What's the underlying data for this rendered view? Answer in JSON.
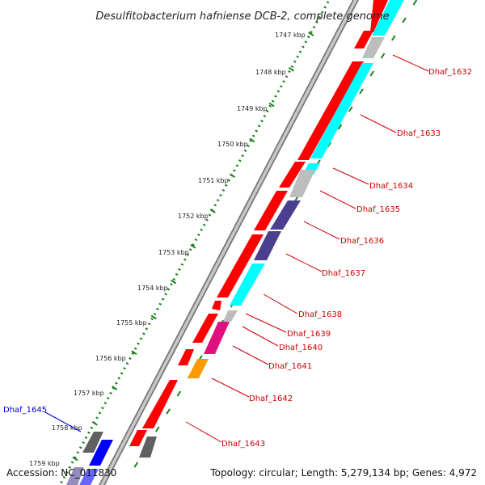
{
  "title": "Desulfitobacterium hafniense DCB-2, complete genome",
  "accession": "Accession: NC_011830",
  "topology": "Topology: circular; Length: 5,279,134 bp; Genes: 4,972",
  "colors": {
    "red": "#ff0000",
    "cyan": "#00ffff",
    "gray": "#bdbdbd",
    "purple": "#4b3f8f",
    "pink": "#e0107f",
    "orange": "#ff9900",
    "darkgray": "#606060",
    "blue": "#0000ff",
    "tick_green": "#1a7f1a",
    "label_red": "#cc0000",
    "label_blue": "#0000cc"
  },
  "scale_ticks": [
    {
      "label": "1747 kbp"
    },
    {
      "label": "1748 kbp"
    },
    {
      "label": "1749 kbp"
    },
    {
      "label": "1750 kbp"
    },
    {
      "label": "1751 kbp"
    },
    {
      "label": "1752 kbp"
    },
    {
      "label": "1753 kbp"
    },
    {
      "label": "1754 kbp"
    },
    {
      "label": "1755 kbp"
    },
    {
      "label": "1756 kbp"
    },
    {
      "label": "1757 kbp"
    },
    {
      "label": "1758 kbp"
    },
    {
      "label": "1759 kbp"
    }
  ],
  "genes": [
    {
      "label": "Dhaf_1632",
      "color": "label_red"
    },
    {
      "label": "Dhaf_1633",
      "color": "label_red"
    },
    {
      "label": "Dhaf_1634",
      "color": "label_red"
    },
    {
      "label": "Dhaf_1635",
      "color": "label_red"
    },
    {
      "label": "Dhaf_1636",
      "color": "label_red"
    },
    {
      "label": "Dhaf_1637",
      "color": "label_red"
    },
    {
      "label": "Dhaf_1638",
      "color": "label_red"
    },
    {
      "label": "Dhaf_1639",
      "color": "label_red"
    },
    {
      "label": "Dhaf_1640",
      "color": "label_red"
    },
    {
      "label": "Dhaf_1641",
      "color": "label_red"
    },
    {
      "label": "Dhaf_1642",
      "color": "label_red"
    },
    {
      "label": "Dhaf_1643",
      "color": "label_red"
    },
    {
      "label": "Dhaf_1645",
      "color": "label_blue"
    }
  ]
}
